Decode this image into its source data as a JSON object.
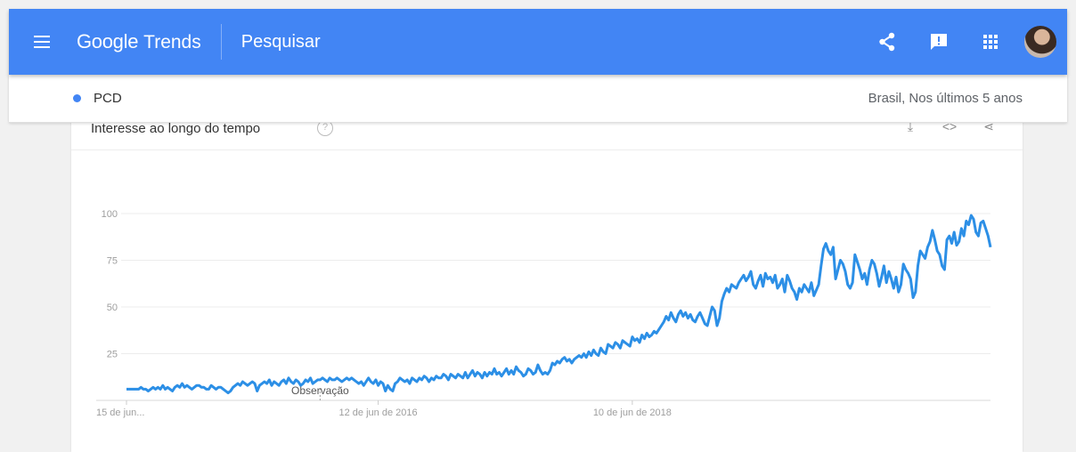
{
  "header": {
    "brand_google": "Google",
    "brand_trends": "Trends",
    "search_label": "Pesquisar",
    "icons": [
      "menu-icon",
      "share-icon",
      "feedback-icon",
      "apps-icon",
      "avatar"
    ]
  },
  "subbar": {
    "term": "PCD",
    "scope": "Brasil, Nos últimos 5 anos"
  },
  "card": {
    "title": "Interesse ao longo do tempo"
  },
  "colors": {
    "accent": "#4285f4",
    "series": "#2c8fe6"
  },
  "chart_data": {
    "type": "line",
    "ylim": [
      0,
      100
    ],
    "yticks": [
      25,
      50,
      75,
      100
    ],
    "xticks": [
      {
        "label": "15 de jun...",
        "index": 0
      },
      {
        "label": "12 de jun de 2016",
        "index": 104
      },
      {
        "label": "10 de jun de 2018",
        "index": 209
      }
    ],
    "annotation": {
      "label": "Observação",
      "index": 80
    },
    "grid": true,
    "legend": "none",
    "series": [
      {
        "values": [
          6,
          6,
          6,
          6,
          6,
          6,
          7,
          6,
          6,
          5,
          6,
          7,
          6,
          7,
          6,
          8,
          6,
          7,
          6,
          5,
          7,
          8,
          7,
          9,
          7,
          8,
          7,
          6,
          7,
          8,
          8,
          7,
          7,
          6,
          6,
          8,
          7,
          6,
          7,
          7,
          6,
          5,
          4,
          5,
          7,
          8,
          9,
          8,
          10,
          9,
          8,
          9,
          10,
          9,
          5,
          8,
          9,
          10,
          9,
          11,
          8,
          10,
          9,
          8,
          10,
          11,
          9,
          12,
          10,
          9,
          11,
          10,
          8,
          9,
          11,
          10,
          12,
          9,
          10,
          11,
          11,
          12,
          11,
          10,
          12,
          11,
          11,
          12,
          11,
          10,
          11,
          12,
          11,
          12,
          11,
          10,
          9,
          10,
          8,
          10,
          12,
          10,
          9,
          11,
          8,
          10,
          9,
          5,
          8,
          6,
          5,
          9,
          10,
          12,
          11,
          10,
          11,
          9,
          12,
          11,
          10,
          12,
          11,
          13,
          12,
          10,
          12,
          11,
          13,
          12,
          12,
          14,
          13,
          11,
          14,
          13,
          12,
          14,
          13,
          12,
          15,
          12,
          14,
          16,
          13,
          15,
          14,
          12,
          15,
          13,
          15,
          14,
          17,
          14,
          15,
          13,
          15,
          17,
          14,
          16,
          14,
          18,
          16,
          15,
          13,
          14,
          17,
          16,
          14,
          15,
          19,
          16,
          14,
          15,
          14,
          16,
          20,
          19,
          21,
          20,
          22,
          23,
          21,
          22,
          20,
          22,
          23,
          24,
          23,
          25,
          23,
          26,
          24,
          27,
          25,
          24,
          28,
          26,
          25,
          30,
          29,
          28,
          31,
          30,
          28,
          32,
          31,
          30,
          29,
          34,
          32,
          33,
          31,
          35,
          33,
          36,
          34,
          35,
          37,
          36,
          38,
          40,
          42,
          45,
          43,
          47,
          44,
          42,
          46,
          48,
          45,
          47,
          44,
          46,
          43,
          42,
          45,
          47,
          44,
          41,
          40,
          45,
          50,
          48,
          40,
          44,
          53,
          57,
          60,
          58,
          62,
          61,
          60,
          63,
          65,
          67,
          64,
          66,
          69,
          62,
          60,
          64,
          67,
          61,
          68,
          65,
          66,
          63,
          67,
          60,
          62,
          65,
          58,
          67,
          64,
          60,
          58,
          54,
          60,
          58,
          62,
          60,
          58,
          63,
          56,
          59,
          62,
          72,
          81,
          84,
          80,
          78,
          82,
          65,
          70,
          75,
          73,
          69,
          62,
          60,
          63,
          78,
          74,
          70,
          65,
          68,
          62,
          70,
          75,
          73,
          68,
          61,
          66,
          72,
          63,
          69,
          65,
          60,
          66,
          58,
          62,
          73,
          70,
          68,
          65,
          55,
          58,
          72,
          80,
          78,
          76,
          82,
          85,
          91,
          86,
          80,
          78,
          72,
          70,
          86,
          88,
          84,
          90,
          83,
          85,
          92,
          88,
          96,
          94,
          99,
          97,
          90,
          88,
          95,
          96,
          92,
          88,
          82
        ]
      }
    ]
  }
}
